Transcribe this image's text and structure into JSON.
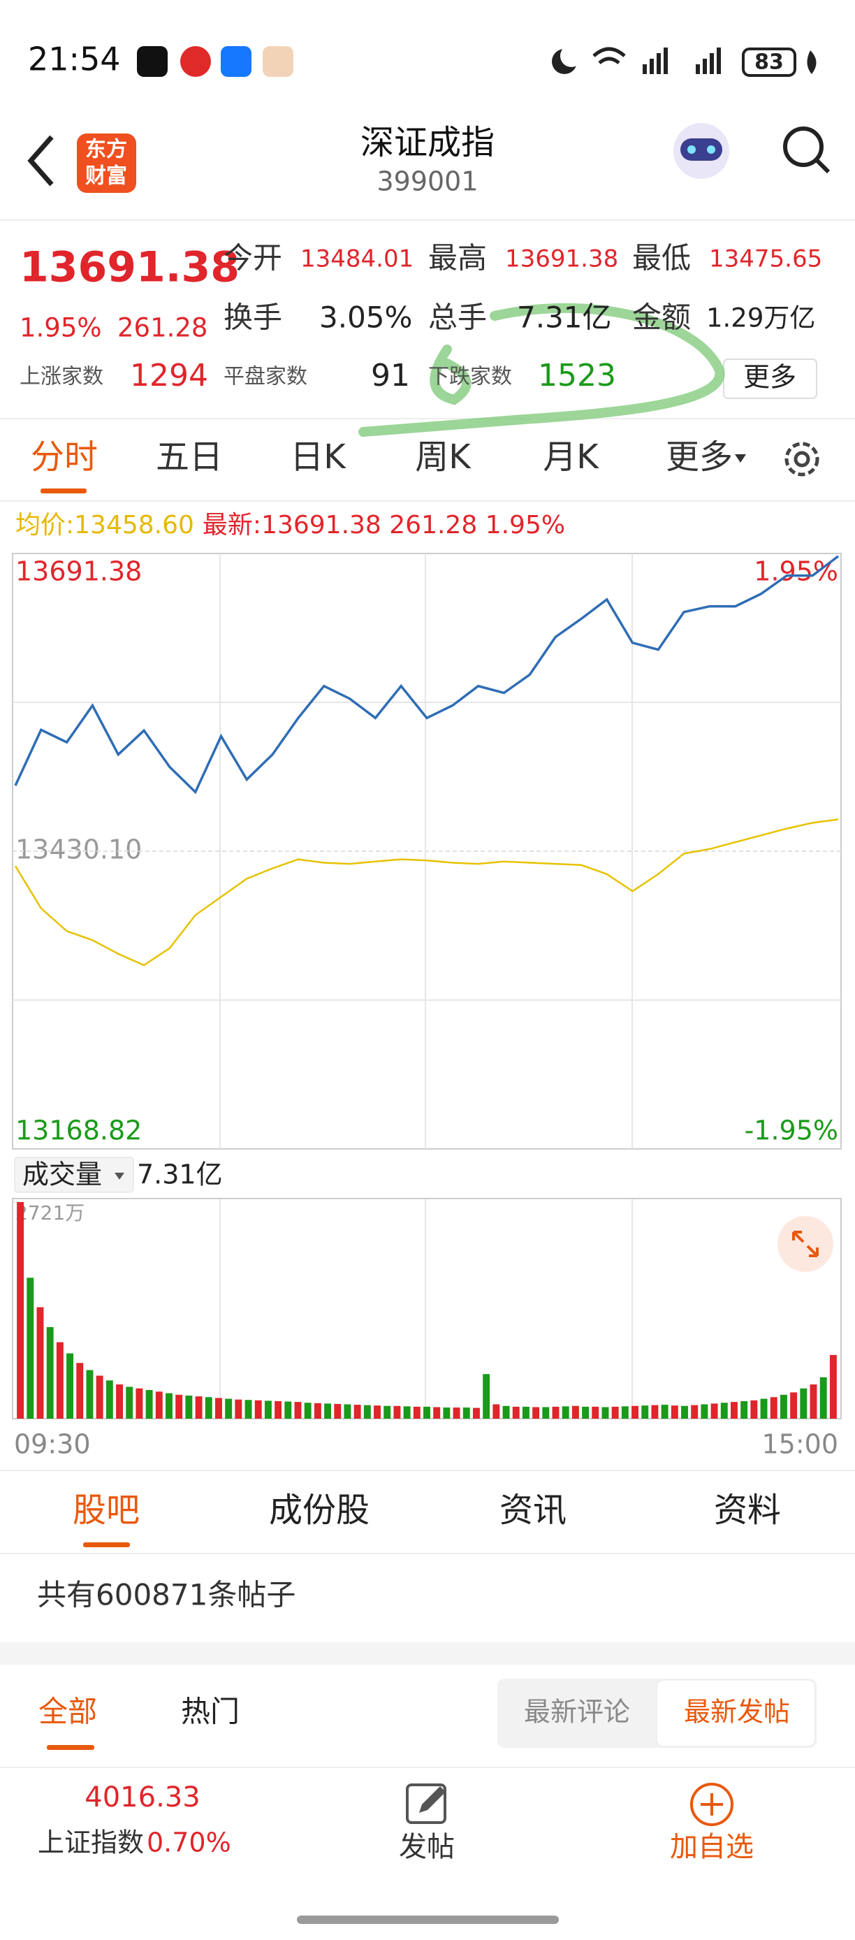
{
  "status_bar": {
    "time": "21:54",
    "battery": "83"
  },
  "header": {
    "logo": [
      "东方",
      "财富"
    ],
    "title": "深证成指",
    "code": "399001"
  },
  "quote": {
    "price": "13691.38",
    "change_pct": "1.95%",
    "change": "261.28",
    "stats": [
      [
        "今开",
        "13484.01"
      ],
      [
        "最高",
        "13691.38"
      ],
      [
        "最低",
        "13475.65"
      ],
      [
        "换手",
        "3.05%"
      ],
      [
        "总手",
        "7.31亿"
      ],
      [
        "金额",
        "1.29万亿"
      ]
    ],
    "breadth": [
      [
        "上涨家数",
        "1294"
      ],
      [
        "平盘家数",
        "91"
      ],
      [
        "下跌家数",
        "1523"
      ]
    ],
    "more": "更多"
  },
  "period_tabs": [
    "分时",
    "五日",
    "日K",
    "周K",
    "月K",
    "更多"
  ],
  "info": {
    "avg_label": "均价:",
    "avg": "13458.60",
    "latest_label": "最新:",
    "latest": "13691.38 261.28 1.95%"
  },
  "chart_data": [
    {
      "type": "line",
      "ylim": [
        13168.82,
        13691.38
      ],
      "yticks": [
        13168.82,
        {
          "value": 13430.1,
          "label": "13430.10"
        },
        13691.38
      ],
      "y2lim": [
        -1.95,
        1.95
      ],
      "y2ticks": [
        {
          "value": -1.95,
          "label": "-1.95%"
        },
        {
          "value": 1.95,
          "label": "1.95%"
        }
      ],
      "series": [
        {
          "color": "#2f6db5",
          "values": [
            13487.7,
            13536.6,
            13525.7,
            13558,
            13515,
            13536,
            13504,
            13482,
            13531,
            13493,
            13515,
            13547,
            13575,
            13564,
            13547,
            13575,
            13547,
            13558,
            13575,
            13569,
            13585,
            13618,
            13634,
            13651,
            13613,
            13607,
            13640,
            13645,
            13645,
            13656,
            13672,
            13672,
            13689
          ]
        },
        {
          "color": "#e6c200",
          "values": [
            13417,
            13380,
            13360,
            13352,
            13340,
            13330,
            13345,
            13374,
            13390,
            13406,
            13415,
            13423,
            13420,
            13419,
            13421,
            13423,
            13422,
            13420,
            13419,
            13421,
            13420,
            13419,
            13418,
            13410,
            13395,
            13410,
            13428,
            13432,
            13438,
            13444,
            13450,
            13455,
            13458
          ]
        }
      ]
    },
    {
      "type": "bar",
      "title": "成交量",
      "total": "7.31亿",
      "ylim": [
        0,
        2721
      ],
      "yticks": [
        {
          "value": 2721,
          "label": "2721万"
        }
      ],
      "colors": [
        "#e0252b",
        "#1a9a1a"
      ],
      "values": [
        2721,
        1770,
        1400,
        1150,
        960,
        820,
        700,
        610,
        540,
        480,
        430,
        400,
        380,
        360,
        340,
        320,
        300,
        290,
        280,
        270,
        260,
        250,
        240,
        235,
        230,
        225,
        220,
        215,
        210,
        200,
        195,
        190,
        185,
        180,
        175,
        170,
        165,
        160,
        160,
        155,
        150,
        150,
        145,
        140,
        140,
        140,
        135,
        560,
        180,
        160,
        150,
        150,
        145,
        145,
        150,
        155,
        160,
        150,
        150,
        145,
        150,
        155,
        160,
        165,
        170,
        175,
        165,
        160,
        170,
        180,
        190,
        200,
        210,
        220,
        230,
        250,
        270,
        300,
        330,
        380,
        430,
        520,
        800
      ]
    }
  ],
  "time_axis": [
    "09:30",
    "15:00"
  ],
  "section_tabs": [
    "股吧",
    "成份股",
    "资讯",
    "资料"
  ],
  "post_count": "共有600871条帖子",
  "filter_tabs": [
    "全部",
    "热门"
  ],
  "sort": [
    "最新评论",
    "最新发帖"
  ],
  "bottom": {
    "index_value": "4016.33",
    "index_name": "上证指数",
    "index_change": "0.70%",
    "post": "发帖",
    "add": "加自选"
  }
}
